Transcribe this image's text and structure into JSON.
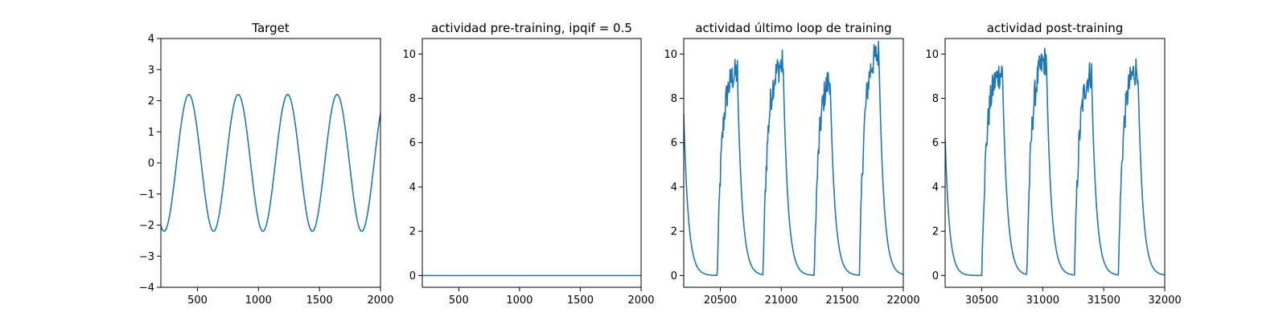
{
  "figure": {
    "background": "#ffffff",
    "line_color": "#1f77b4"
  },
  "chart_data": [
    {
      "id": "target",
      "type": "line",
      "title": "Target",
      "xlabel": "",
      "ylabel": "",
      "xlim": [
        200,
        2000
      ],
      "ylim": [
        -4,
        4
      ],
      "xticks": [
        500,
        1000,
        1500,
        2000
      ],
      "xtick_labels": [
        "500",
        "1000",
        "1500",
        "2000"
      ],
      "yticks": [
        -4,
        -3,
        -2,
        -1,
        0,
        1,
        2,
        3,
        4
      ],
      "ytick_labels": [
        "−4",
        "−3",
        "−2",
        "−1",
        "0",
        "1",
        "2",
        "3",
        "4"
      ],
      "grid": false,
      "series": [
        {
          "kind": "sine",
          "x_start": 200,
          "x_end": 2000,
          "amplitude": 2.2,
          "period": 405,
          "phase_x": 328,
          "step": 5
        }
      ]
    },
    {
      "id": "pre-training",
      "type": "line",
      "title": "actividad pre-training, ipqif = 0.5",
      "xlabel": "",
      "ylabel": "",
      "xlim": [
        200,
        2000
      ],
      "ylim": [
        -0.53,
        10.7
      ],
      "xticks": [
        500,
        1000,
        1500,
        2000
      ],
      "xtick_labels": [
        "500",
        "1000",
        "1500",
        "2000"
      ],
      "yticks": [
        0,
        2,
        4,
        6,
        8,
        10
      ],
      "ytick_labels": [
        "0",
        "2",
        "4",
        "6",
        "8",
        "10"
      ],
      "grid": false,
      "series": [
        {
          "kind": "points",
          "x": [
            200,
            2000
          ],
          "y": [
            0,
            0
          ]
        }
      ]
    },
    {
      "id": "last-training-loop",
      "type": "line",
      "title": "actividad último loop de training",
      "xlabel": "",
      "ylabel": "",
      "xlim": [
        20200,
        22000
      ],
      "ylim": [
        -0.53,
        10.7
      ],
      "xticks": [
        20500,
        21000,
        21500,
        22000
      ],
      "xtick_labels": [
        "20500",
        "21000",
        "21500",
        "22000"
      ],
      "yticks": [
        0,
        2,
        4,
        6,
        8,
        10
      ],
      "ytick_labels": [
        "0",
        "2",
        "4",
        "6",
        "8",
        "10"
      ],
      "grid": false,
      "series": [
        {
          "kind": "pulses",
          "x_start": 20200,
          "x_end": 22000,
          "step": 4,
          "initial": {
            "value": 7.3,
            "decay": 38
          },
          "pulses": [
            {
              "start": 20475,
              "end": 20640,
              "peak": 9.3
            },
            {
              "start": 20850,
              "end": 21015,
              "peak": 9.7
            },
            {
              "start": 21270,
              "end": 21400,
              "peak": 9.2
            },
            {
              "start": 21640,
              "end": 21800,
              "peak": 10.2
            }
          ],
          "rise": 38,
          "decay": 38,
          "noise": 0.7
        }
      ]
    },
    {
      "id": "post-training",
      "type": "line",
      "title": "actividad post-training",
      "xlabel": "",
      "ylabel": "",
      "xlim": [
        30200,
        32000
      ],
      "ylim": [
        -0.53,
        10.7
      ],
      "xticks": [
        30500,
        31000,
        31500,
        32000
      ],
      "xtick_labels": [
        "30500",
        "31000",
        "31500",
        "32000"
      ],
      "yticks": [
        0,
        2,
        4,
        6,
        8,
        10
      ],
      "ytick_labels": [
        "0",
        "2",
        "4",
        "6",
        "8",
        "10"
      ],
      "grid": false,
      "series": [
        {
          "kind": "pulses",
          "x_start": 30200,
          "x_end": 32000,
          "step": 4,
          "initial": {
            "value": 6.2,
            "decay": 35
          },
          "pulses": [
            {
              "start": 30500,
              "end": 30670,
              "peak": 9.3
            },
            {
              "start": 30870,
              "end": 31030,
              "peak": 9.9
            },
            {
              "start": 31260,
              "end": 31400,
              "peak": 9.4
            },
            {
              "start": 31620,
              "end": 31780,
              "peak": 9.5
            }
          ],
          "rise": 38,
          "decay": 38,
          "noise": 0.7
        }
      ]
    }
  ]
}
